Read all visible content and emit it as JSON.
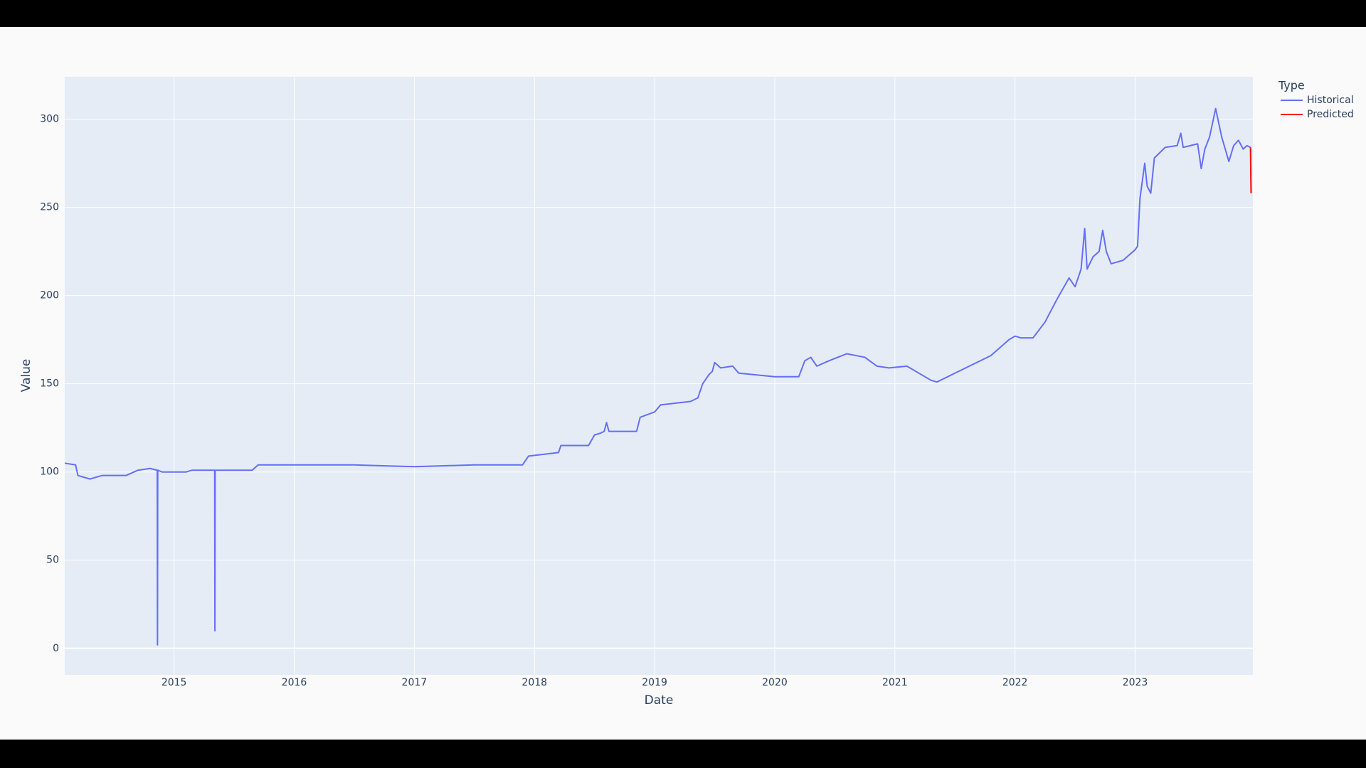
{
  "chart_data": {
    "type": "line",
    "xlabel": "Date",
    "ylabel": "Value",
    "legend_title": "Type",
    "xlim": [
      2014.09,
      2023.98
    ],
    "xticks": [
      2015,
      2016,
      2017,
      2018,
      2019,
      2020,
      2021,
      2022,
      2023
    ],
    "ylim": [
      -15,
      324
    ],
    "yticks": [
      0,
      50,
      100,
      150,
      200,
      250,
      300
    ],
    "grid": true,
    "legend": "upper right",
    "series": [
      {
        "name": "Historical",
        "color": "#636efa",
        "x": [
          2014.09,
          2014.18,
          2014.2,
          2014.3,
          2014.4,
          2014.6,
          2014.7,
          2014.8,
          2014.86,
          2014.862,
          2014.864,
          2014.9,
          2015.1,
          2015.15,
          2015.338,
          2015.34,
          2015.342,
          2015.65,
          2015.7,
          2016.0,
          2016.5,
          2017.0,
          2017.5,
          2017.9,
          2017.95,
          2018.2,
          2018.22,
          2018.45,
          2018.5,
          2018.55,
          2018.58,
          2018.6,
          2018.62,
          2018.85,
          2018.88,
          2019.0,
          2019.05,
          2019.3,
          2019.36,
          2019.4,
          2019.45,
          2019.48,
          2019.5,
          2019.55,
          2019.65,
          2019.7,
          2020.0,
          2020.2,
          2020.25,
          2020.3,
          2020.35,
          2020.45,
          2020.6,
          2020.75,
          2020.85,
          2020.95,
          2021.1,
          2021.3,
          2021.35,
          2021.5,
          2021.8,
          2021.95,
          2022.0,
          2022.05,
          2022.15,
          2022.25,
          2022.35,
          2022.45,
          2022.5,
          2022.55,
          2022.58,
          2022.6,
          2022.65,
          2022.7,
          2022.73,
          2022.76,
          2022.8,
          2022.9,
          2023.0,
          2023.02,
          2023.04,
          2023.08,
          2023.1,
          2023.13,
          2023.16,
          2023.25,
          2023.35,
          2023.38,
          2023.4,
          2023.52,
          2023.55,
          2023.58,
          2023.62,
          2023.67,
          2023.72,
          2023.78,
          2023.82,
          2023.86,
          2023.9,
          2023.93,
          2023.96
        ],
        "values": [
          105,
          104,
          98,
          96,
          98,
          98,
          101,
          102,
          101,
          2,
          101,
          100,
          100,
          101,
          101,
          10,
          101,
          101,
          104,
          104,
          104,
          103,
          104,
          104,
          109,
          111,
          115,
          115,
          121,
          122,
          123,
          128,
          123,
          123,
          131,
          134,
          138,
          140,
          142,
          150,
          155,
          157,
          162,
          159,
          160,
          156,
          154,
          154,
          163,
          165,
          160,
          163,
          167,
          165,
          160,
          159,
          160,
          152,
          151,
          156,
          166,
          175,
          177,
          176,
          176,
          185,
          198,
          210,
          205,
          215,
          238,
          215,
          222,
          225,
          237,
          225,
          218,
          220,
          226,
          228,
          255,
          275,
          262,
          258,
          278,
          284,
          285,
          292,
          284,
          286,
          272,
          283,
          290,
          306,
          290,
          276,
          285,
          288,
          283,
          285,
          284
        ]
      },
      {
        "name": "Predicted",
        "color": "#ff0000",
        "x": [
          2023.96,
          2023.965
        ],
        "values": [
          284,
          258
        ]
      }
    ]
  }
}
